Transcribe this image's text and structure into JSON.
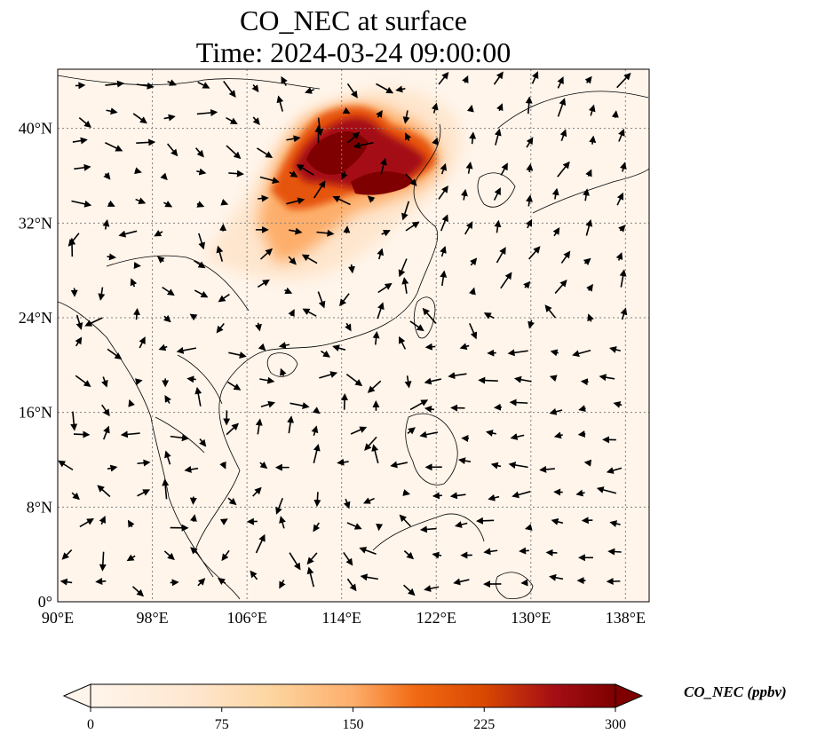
{
  "title": {
    "line1": "CO_NEC at surface",
    "line2": "Time: 2024-03-24 09:00:00"
  },
  "map": {
    "lon_range": [
      90,
      140
    ],
    "lat_range": [
      0,
      45
    ],
    "x_ticks": [
      "90°E",
      "98°E",
      "106°E",
      "114°E",
      "122°E",
      "130°E",
      "138°E"
    ],
    "y_ticks": [
      "0°",
      "8°N",
      "16°N",
      "24°N",
      "32°N",
      "40°N"
    ],
    "grid": "dotted",
    "plume_color_scale": [
      "#fff5eb",
      "#fdd49e",
      "#fdae6b",
      "#f16913",
      "#d94801",
      "#a63603",
      "#7f0000"
    ]
  },
  "colorbar": {
    "label": "CO_NEC (ppbv)",
    "ticks": [
      "0",
      "75",
      "150",
      "225",
      "300"
    ],
    "range": [
      0,
      300
    ],
    "extend": "both"
  }
}
